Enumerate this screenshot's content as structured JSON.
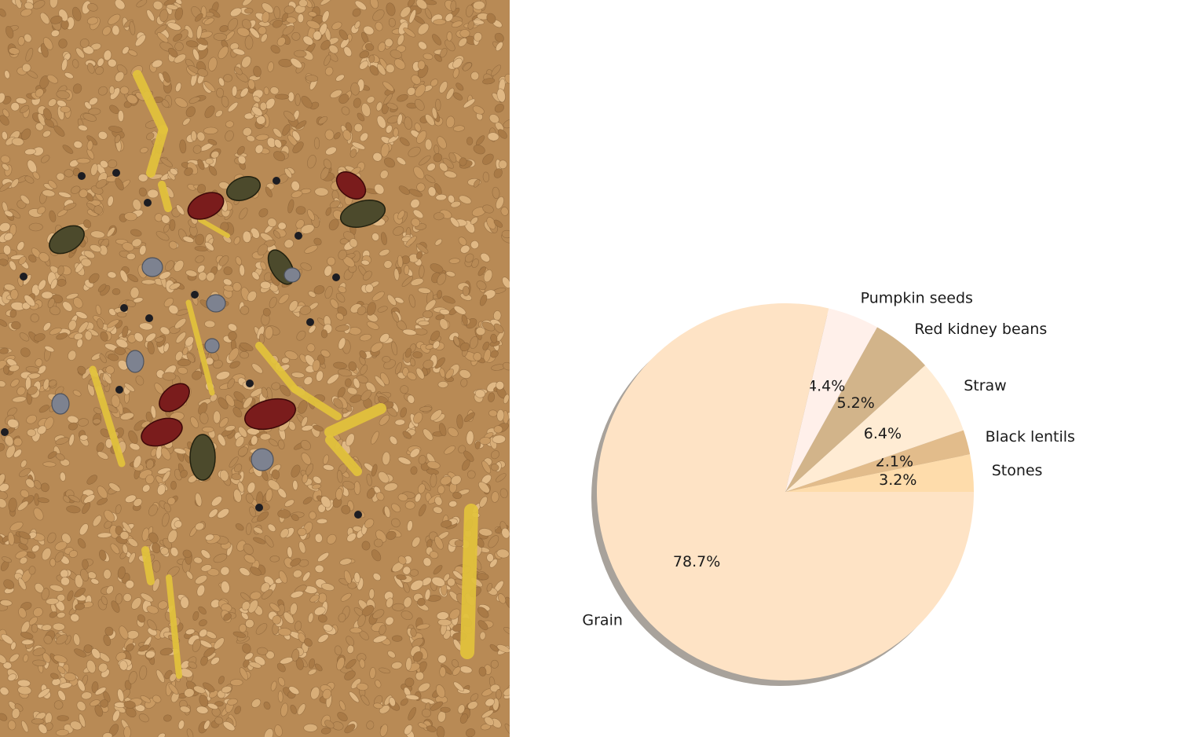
{
  "photo": {
    "subject": "wheat-grain-mixed-with-impurities",
    "colors": {
      "grain_base": "#b88a55",
      "grain_light": "#d8ae78",
      "grain_dark": "#7a5530",
      "kidney_bean": "#7a1c1c",
      "pumpkin_seed": "#4c4a2c",
      "stone": "#7d8290",
      "lentil": "#1d1d22",
      "straw": "#e2c23c"
    }
  },
  "chart_data": {
    "type": "pie",
    "title": "",
    "shadow": true,
    "start_angle_deg": 0,
    "direction": "counterclockwise",
    "slices": [
      {
        "label": "Stones",
        "value": 3.2,
        "pct_label": "3.2%",
        "color": "#fedcab"
      },
      {
        "label": "Black lentils",
        "value": 2.1,
        "pct_label": "2.1%",
        "color": "#e2bc8b"
      },
      {
        "label": "Straw",
        "value": 6.4,
        "pct_label": "6.4%",
        "color": "#ffecd4"
      },
      {
        "label": "Red kidney beans",
        "value": 5.2,
        "pct_label": "5.2%",
        "color": "#d2b48a"
      },
      {
        "label": "Pumpkin seeds",
        "value": 4.4,
        "pct_label": "4.4%",
        "color": "#fff0ea"
      },
      {
        "label": "Grain",
        "value": 78.7,
        "pct_label": "78.7%",
        "color": "#fee3c5"
      }
    ]
  }
}
